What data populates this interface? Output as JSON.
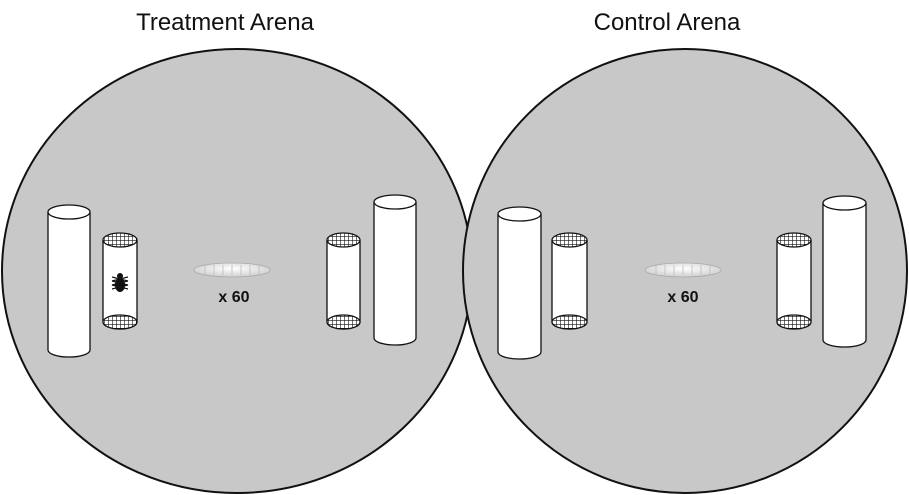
{
  "arenas": [
    {
      "title": "Treatment Arena",
      "count_label": "x 60"
    },
    {
      "title": "Control Arena",
      "count_label": "x 60"
    }
  ]
}
